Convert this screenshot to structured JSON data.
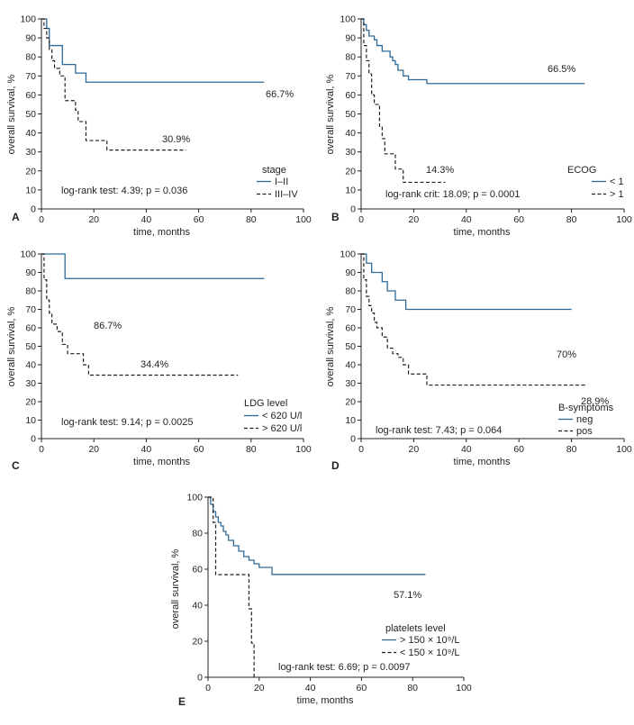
{
  "chart_data": [
    {
      "panel": "A",
      "type": "line",
      "xlabel": "time, months",
      "ylabel": "overall survival, %",
      "xlim": [
        0,
        100
      ],
      "ylim": [
        0,
        100
      ],
      "xticks": [
        0,
        20,
        40,
        60,
        80,
        100
      ],
      "yticks": [
        0,
        10,
        20,
        30,
        40,
        50,
        60,
        70,
        80,
        90,
        100
      ],
      "legend_title": "stage",
      "test_text": "log-rank test: 4.39; p = 0.036",
      "series": [
        {
          "name": "I–II",
          "style": "solid",
          "color": "#2e6a98",
          "end_label": "66.7%",
          "x": [
            0,
            2,
            3,
            5,
            8,
            10,
            13,
            17,
            85
          ],
          "y": [
            100,
            95,
            86,
            86,
            76,
            76,
            71.5,
            66.7,
            66.7
          ]
        },
        {
          "name": "III–IV",
          "style": "dashed",
          "color": "#231f20",
          "end_label": "30.9%",
          "x": [
            0,
            1,
            2,
            3,
            4,
            5,
            7,
            9,
            13,
            14,
            17,
            25,
            55
          ],
          "y": [
            100,
            95,
            90,
            84,
            78,
            74,
            70,
            57,
            52,
            46,
            36,
            31,
            30.9
          ]
        }
      ]
    },
    {
      "panel": "B",
      "type": "line",
      "xlabel": "time, months",
      "ylabel": "overall survival, %",
      "xlim": [
        0,
        100
      ],
      "ylim": [
        0,
        100
      ],
      "xticks": [
        0,
        20,
        40,
        60,
        80,
        100
      ],
      "yticks": [
        0,
        10,
        20,
        30,
        40,
        50,
        60,
        70,
        80,
        90,
        100
      ],
      "legend_title": "ECOG",
      "test_text": "log-rank crit: 18.09; p = 0.0001",
      "series": [
        {
          "name": "< 1",
          "style": "solid",
          "color": "#2e6a98",
          "end_label": "66.5%",
          "x": [
            0,
            1,
            2,
            3,
            5,
            6,
            8,
            9,
            11,
            12,
            13,
            14,
            16,
            18,
            25,
            85
          ],
          "y": [
            100,
            97,
            94,
            91,
            89,
            86,
            83,
            83,
            80,
            78,
            76,
            73,
            70,
            68,
            66,
            66
          ]
        },
        {
          "name": "> 1",
          "style": "dashed",
          "color": "#231f20",
          "end_label": "14.3%",
          "x": [
            0,
            1,
            2,
            3,
            4,
            5,
            7,
            8,
            9,
            10,
            13,
            16,
            32
          ],
          "y": [
            100,
            86,
            78,
            71,
            60,
            55,
            43,
            37,
            29,
            29,
            21,
            14,
            14
          ]
        }
      ]
    },
    {
      "panel": "C",
      "type": "line",
      "xlabel": "time, months",
      "ylabel": "overall survival, %",
      "xlim": [
        0,
        100
      ],
      "ylim": [
        0,
        100
      ],
      "xticks": [
        0,
        20,
        40,
        60,
        80,
        100
      ],
      "yticks": [
        0,
        10,
        20,
        30,
        40,
        50,
        60,
        70,
        80,
        90,
        100
      ],
      "legend_title": "LDG level",
      "test_text": "log-rank test: 9.14; p = 0.0025",
      "series": [
        {
          "name": "< 620 U/l",
          "style": "solid",
          "color": "#2e6a98",
          "end_label": "86.7%",
          "x": [
            0,
            7,
            9,
            85
          ],
          "y": [
            100,
            100,
            86.7,
            86.7
          ]
        },
        {
          "name": "> 620 U/l",
          "style": "dashed",
          "color": "#231f20",
          "end_label": "34.4%",
          "x": [
            0,
            1,
            2,
            3,
            4,
            6,
            8,
            10,
            13,
            16,
            18,
            75
          ],
          "y": [
            100,
            86,
            75,
            68,
            62,
            58,
            51,
            46,
            46,
            40,
            34.4,
            34.4
          ]
        }
      ]
    },
    {
      "panel": "D",
      "type": "line",
      "xlabel": "time, months",
      "ylabel": "overall survival, %",
      "xlim": [
        0,
        100
      ],
      "ylim": [
        0,
        100
      ],
      "xticks": [
        0,
        20,
        40,
        60,
        80,
        100
      ],
      "yticks": [
        0,
        10,
        20,
        30,
        40,
        50,
        60,
        70,
        80,
        90,
        100
      ],
      "legend_title": "B-symptoms",
      "test_text": "log-rank test: 7.43; p = 0.064",
      "series": [
        {
          "name": "neg",
          "style": "solid",
          "color": "#2e6a98",
          "end_label": "70%",
          "x": [
            0,
            2,
            4,
            6,
            8,
            10,
            12,
            13,
            15,
            17,
            80
          ],
          "y": [
            100,
            95,
            90,
            90,
            85,
            80,
            80,
            75,
            75,
            70,
            70
          ]
        },
        {
          "name": "pos",
          "style": "dashed",
          "color": "#231f20",
          "end_label": "28.9%",
          "x": [
            0,
            1,
            2,
            3,
            4,
            5,
            6,
            8,
            10,
            12,
            14,
            16,
            18,
            25,
            85
          ],
          "y": [
            100,
            86,
            77,
            72,
            68,
            63,
            60,
            55,
            49,
            46,
            44,
            40,
            35,
            29,
            28.9
          ]
        }
      ]
    },
    {
      "panel": "E",
      "type": "line",
      "xlabel": "time, months",
      "ylabel": "overall survival, %",
      "xlim": [
        0,
        100
      ],
      "ylim": [
        0,
        100
      ],
      "xticks": [
        0,
        20,
        40,
        60,
        80,
        100
      ],
      "yticks": [
        0,
        20,
        40,
        60,
        80,
        100
      ],
      "legend_title": "platelets level",
      "test_text": "log-rank test: 6.69; p = 0.0097",
      "series": [
        {
          "name": "> 150 × 10⁹/L",
          "style": "solid",
          "color": "#2e6a98",
          "end_label": "57.1%",
          "x": [
            0,
            1,
            2,
            3,
            4,
            5,
            6,
            7,
            8,
            10,
            12,
            14,
            16,
            18,
            20,
            25,
            85
          ],
          "y": [
            100,
            96,
            92,
            89,
            86,
            84,
            81,
            79,
            76,
            73,
            70,
            67,
            65,
            63,
            61,
            57.1,
            57.1
          ]
        },
        {
          "name": "< 150 × 10⁹/L",
          "style": "dashed",
          "color": "#231f20",
          "end_label": "",
          "x": [
            0,
            2,
            3,
            13,
            16,
            17,
            18
          ],
          "y": [
            100,
            86,
            57,
            57,
            38,
            19,
            0
          ]
        }
      ]
    }
  ]
}
